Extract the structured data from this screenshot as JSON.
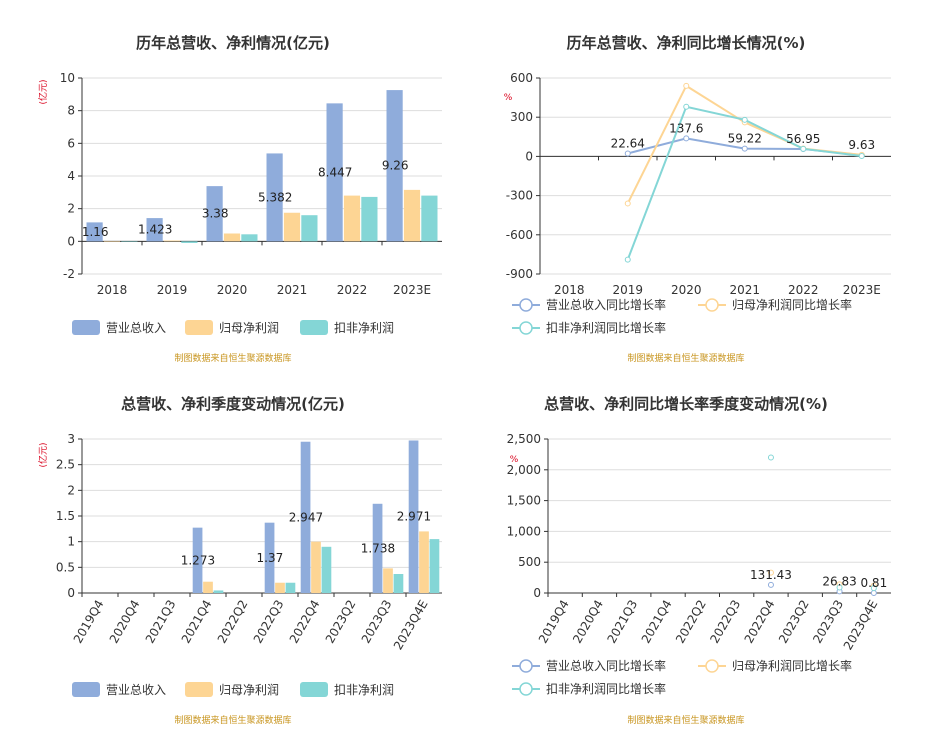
{
  "colors": {
    "revenue": "#8facdb",
    "net_profit": "#fdd594",
    "deducted_profit": "#84d6d6",
    "axis": "#333333",
    "grid": "#dddddd",
    "unit": "#d9001b",
    "source": "#c8951f"
  },
  "source_note": "制图数据来自恒生聚源数据库",
  "chart_data": [
    {
      "type": "bar",
      "title": "历年总营收、净利情况(亿元)",
      "ylabel": "(亿元)",
      "ylim": [
        -2,
        10
      ],
      "yticks": [
        "-2",
        "0",
        "2",
        "4",
        "6",
        "8",
        "10"
      ],
      "categories": [
        "2018",
        "2019",
        "2020",
        "2021",
        "2022",
        "2023E"
      ],
      "series": [
        {
          "name": "营业总收入",
          "values": [
            1.16,
            1.423,
            3.38,
            5.382,
            8.447,
            9.26
          ]
        },
        {
          "name": "归母净利润",
          "values": [
            0.02,
            0.05,
            0.48,
            1.75,
            2.8,
            3.15
          ]
        },
        {
          "name": "扣非净利润",
          "values": [
            0.0,
            -0.1,
            0.43,
            1.6,
            2.72,
            2.8
          ]
        }
      ],
      "data_labels": [
        "1.16",
        "1.423",
        "3.38",
        "5.382",
        "8.447",
        "9.26"
      ],
      "legend": "bottom",
      "grid": true
    },
    {
      "type": "line",
      "title": "历年总营收、净利同比增长情况(%)",
      "ylabel": "%",
      "ylim": [
        -900,
        600
      ],
      "yticks": [
        "-900",
        "-600",
        "-300",
        "0",
        "300",
        "600"
      ],
      "categories": [
        "2018",
        "2019",
        "2020",
        "2021",
        "2022",
        "2023E"
      ],
      "series": [
        {
          "name": "营业总收入同比增长率",
          "values": [
            null,
            22.64,
            137.6,
            59.22,
            56.95,
            9.63
          ]
        },
        {
          "name": "归母净利润同比增长率",
          "values": [
            null,
            -360,
            540,
            260,
            60,
            12
          ]
        },
        {
          "name": "扣非净利润同比增长率",
          "values": [
            null,
            -790,
            380,
            280,
            58,
            3
          ]
        }
      ],
      "data_labels": [
        "",
        "22.64",
        "137.6",
        "59.22",
        "56.95",
        "9.63"
      ],
      "legend": "bottom",
      "grid": true
    },
    {
      "type": "bar",
      "title": "总营收、净利季度变动情况(亿元)",
      "ylabel": "(亿元)",
      "ylim": [
        0,
        3
      ],
      "yticks": [
        "0",
        "0.5",
        "1",
        "1.5",
        "2",
        "2.5",
        "3"
      ],
      "categories": [
        "2019Q4",
        "2020Q4",
        "2021Q3",
        "2021Q4",
        "2022Q2",
        "2022Q3",
        "2022Q4",
        "2023Q2",
        "2023Q3",
        "2023Q4E"
      ],
      "series": [
        {
          "name": "营业总收入",
          "values": [
            null,
            null,
            null,
            1.273,
            null,
            1.37,
            2.947,
            null,
            1.738,
            2.971
          ]
        },
        {
          "name": "归母净利润",
          "values": [
            null,
            null,
            null,
            0.22,
            null,
            0.2,
            1.0,
            null,
            0.48,
            1.2
          ]
        },
        {
          "name": "扣非净利润",
          "values": [
            null,
            null,
            null,
            0.05,
            null,
            0.2,
            0.9,
            null,
            0.37,
            1.05
          ]
        }
      ],
      "data_labels": [
        "",
        "",
        "",
        "1.273",
        "",
        "1.37",
        "2.947",
        "",
        "1.738",
        "2.971"
      ],
      "legend": "bottom",
      "grid": true
    },
    {
      "type": "scatter",
      "title": "总营收、净利同比增长率季度变动情况(%)",
      "ylabel": "%",
      "ylim": [
        0,
        2500
      ],
      "yticks": [
        "0",
        "500",
        "1,000",
        "1,500",
        "2,000",
        "2,500"
      ],
      "categories": [
        "2019Q4",
        "2020Q4",
        "2021Q3",
        "2021Q4",
        "2022Q2",
        "2022Q3",
        "2022Q4",
        "2023Q2",
        "2023Q3",
        "2023Q4E"
      ],
      "series": [
        {
          "name": "营业总收入同比增长率",
          "values": [
            null,
            null,
            null,
            null,
            null,
            null,
            131.43,
            null,
            26.83,
            0.81
          ]
        },
        {
          "name": "归母净利润同比增长率",
          "values": [
            null,
            null,
            null,
            null,
            null,
            null,
            330,
            null,
            140,
            120
          ]
        },
        {
          "name": "扣非净利润同比增长率",
          "values": [
            null,
            null,
            null,
            null,
            null,
            null,
            2200,
            null,
            90,
            80
          ]
        }
      ],
      "data_labels": [
        "",
        "",
        "",
        "",
        "",
        "",
        "131.43",
        "",
        "26.83",
        "0.81"
      ],
      "legend": "bottom",
      "grid": true
    }
  ]
}
